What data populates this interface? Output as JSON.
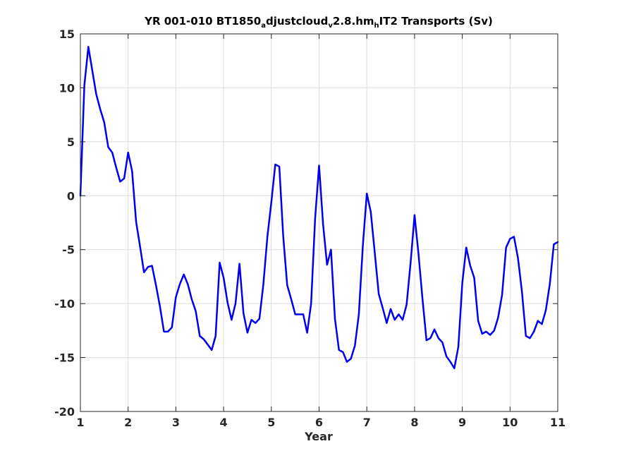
{
  "chart_data": {
    "type": "line",
    "title": {
      "segments": [
        {
          "text": "YR 001-010 BT1850",
          "sub": false
        },
        {
          "text": "a",
          "sub": true
        },
        {
          "text": "djustcloud",
          "sub": false
        },
        {
          "text": "v",
          "sub": true
        },
        {
          "text": "2.8.hm",
          "sub": false
        },
        {
          "text": "h",
          "sub": true
        },
        {
          "text": "IT2 Transports (Sv)",
          "sub": false
        }
      ]
    },
    "xlabel": "Year",
    "ylabel": "",
    "xlim": [
      1,
      11
    ],
    "ylim": [
      -20,
      15
    ],
    "xticks": [
      1,
      2,
      3,
      4,
      5,
      6,
      7,
      8,
      9,
      10,
      11
    ],
    "xtick_labels": [
      "1",
      "2",
      "3",
      "4",
      "5",
      "6",
      "7",
      "8",
      "9",
      "10",
      "11"
    ],
    "yticks": [
      15,
      10,
      5,
      0,
      -5,
      -10,
      -15,
      -20
    ],
    "ytick_labels": [
      "15",
      "10",
      "5",
      "0",
      "-5",
      "-10",
      "-15",
      "-20"
    ],
    "grid": true,
    "series": [
      {
        "color": "#0000ee",
        "x": [
          1.0,
          1.083,
          1.167,
          1.25,
          1.333,
          1.417,
          1.5,
          1.583,
          1.667,
          1.75,
          1.833,
          1.917,
          2.0,
          2.083,
          2.167,
          2.25,
          2.333,
          2.417,
          2.5,
          2.583,
          2.667,
          2.75,
          2.833,
          2.917,
          3.0,
          3.083,
          3.167,
          3.25,
          3.333,
          3.417,
          3.5,
          3.583,
          3.667,
          3.75,
          3.833,
          3.917,
          4.0,
          4.083,
          4.167,
          4.25,
          4.333,
          4.417,
          4.5,
          4.583,
          4.667,
          4.75,
          4.833,
          4.917,
          5.0,
          5.083,
          5.167,
          5.25,
          5.333,
          5.417,
          5.5,
          5.583,
          5.667,
          5.75,
          5.833,
          5.917,
          6.0,
          6.083,
          6.167,
          6.25,
          6.333,
          6.417,
          6.5,
          6.583,
          6.667,
          6.75,
          6.833,
          6.917,
          7.0,
          7.083,
          7.167,
          7.25,
          7.333,
          7.417,
          7.5,
          7.583,
          7.667,
          7.75,
          7.833,
          7.917,
          8.0,
          8.083,
          8.167,
          8.25,
          8.333,
          8.417,
          8.5,
          8.583,
          8.667,
          8.75,
          8.833,
          8.917,
          9.0,
          9.083,
          9.167,
          9.25,
          9.333,
          9.417,
          9.5,
          9.583,
          9.667,
          9.75,
          9.833,
          9.917,
          10.0,
          10.083,
          10.167,
          10.25,
          10.333,
          10.417,
          10.5,
          10.583,
          10.667,
          10.75,
          10.833,
          10.917,
          11.0
        ],
        "y": [
          0.0,
          10.2,
          13.8,
          11.6,
          9.4,
          8.0,
          6.8,
          4.5,
          4.0,
          2.6,
          1.3,
          1.6,
          4.0,
          2.3,
          -2.4,
          -4.7,
          -7.1,
          -6.6,
          -6.5,
          -8.3,
          -10.3,
          -12.6,
          -12.6,
          -12.2,
          -9.4,
          -8.2,
          -7.3,
          -8.2,
          -9.6,
          -10.7,
          -13.0,
          -13.3,
          -13.8,
          -14.3,
          -13.0,
          -6.2,
          -7.6,
          -9.9,
          -11.5,
          -10.0,
          -6.3,
          -10.9,
          -12.7,
          -11.5,
          -11.8,
          -11.4,
          -8.2,
          -3.8,
          -0.6,
          2.9,
          2.7,
          -3.8,
          -8.3,
          -9.6,
          -11.0,
          -11.0,
          -11.0,
          -12.7,
          -10.0,
          -2.1,
          2.8,
          -2.6,
          -6.4,
          -5.0,
          -11.4,
          -14.3,
          -14.5,
          -15.4,
          -15.1,
          -13.9,
          -11.0,
          -4.6,
          0.2,
          -1.5,
          -5.3,
          -9.1,
          -10.4,
          -11.8,
          -10.5,
          -11.5,
          -11.0,
          -11.5,
          -10.1,
          -6.2,
          -1.8,
          -5.4,
          -9.6,
          -13.4,
          -13.2,
          -12.4,
          -13.2,
          -13.6,
          -14.9,
          -15.4,
          -16.0,
          -14.0,
          -8.1,
          -4.8,
          -6.5,
          -7.6,
          -11.6,
          -12.8,
          -12.6,
          -12.9,
          -12.5,
          -11.3,
          -9.2,
          -4.8,
          -4.0,
          -3.8,
          -5.8,
          -8.9,
          -13.0,
          -13.2,
          -12.6,
          -11.6,
          -11.9,
          -10.6,
          -8.2,
          -4.5,
          -4.3
        ]
      }
    ]
  }
}
